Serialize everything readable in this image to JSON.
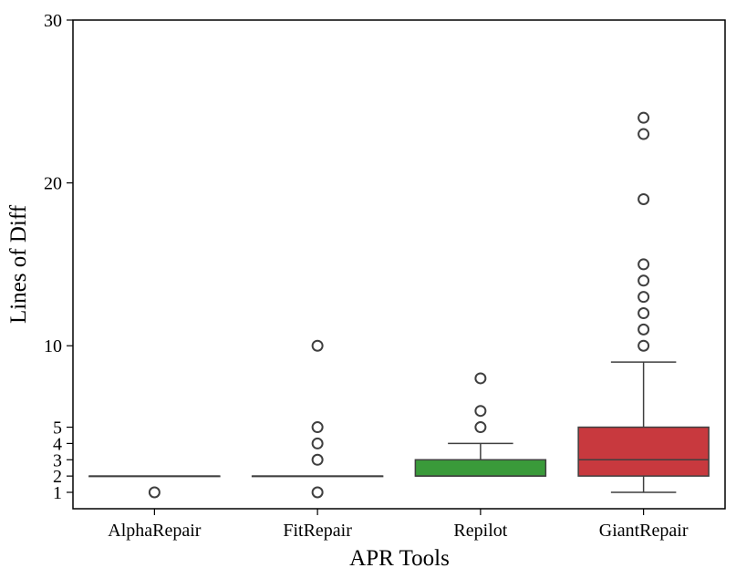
{
  "chart_data": {
    "type": "box",
    "title": "",
    "xlabel": "APR Tools",
    "ylabel": "Lines of Diff",
    "ylim": [
      0,
      30
    ],
    "yticks": [
      1,
      2,
      3,
      4,
      5,
      10,
      20,
      30
    ],
    "grid": false,
    "legend": "none",
    "categories": [
      "AlphaRepair",
      "FitRepair",
      "Repilot",
      "GiantRepair"
    ],
    "boxes": [
      {
        "name": "AlphaRepair",
        "color": "#1f77b4",
        "whisker_low": 2,
        "q1": 2,
        "median": 2,
        "q3": 2,
        "whisker_high": 2,
        "outliers": [
          1
        ]
      },
      {
        "name": "FitRepair",
        "color": "#ff7f0e",
        "whisker_low": 2,
        "q1": 2,
        "median": 2,
        "q3": 2,
        "whisker_high": 2,
        "outliers": [
          1,
          3,
          4,
          5,
          10
        ]
      },
      {
        "name": "Repilot",
        "color": "#3a9a3a",
        "whisker_low": 2,
        "q1": 2,
        "median": 2,
        "q3": 3,
        "whisker_high": 4,
        "outliers": [
          5,
          6,
          8
        ]
      },
      {
        "name": "GiantRepair",
        "color": "#c8393e",
        "whisker_low": 1,
        "q1": 2,
        "median": 3,
        "q3": 5,
        "whisker_high": 9,
        "outliers": [
          10,
          11,
          12,
          13,
          14,
          15,
          19,
          23,
          24
        ]
      }
    ]
  }
}
